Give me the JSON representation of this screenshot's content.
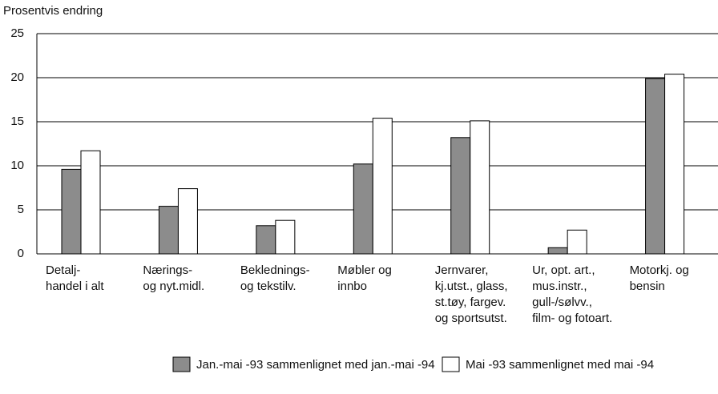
{
  "chart_data": {
    "type": "bar",
    "y_axis_label": "Prosentvis endring",
    "categories": [
      [
        "Detalj-",
        "handel i alt"
      ],
      [
        "Nærings-",
        "og nyt.midl."
      ],
      [
        "Beklednings-",
        "og tekstilv."
      ],
      [
        "Møbler og",
        "innbo"
      ],
      [
        "Jernvarer,",
        "kj.utst., glass,",
        "st.tøy, fargev.",
        "og sportsutst."
      ],
      [
        "Ur, opt. art.,",
        "mus.instr.,",
        "gull-/sølvv.,",
        "film- og fotoart."
      ],
      [
        "Motorkj. og",
        "bensin"
      ]
    ],
    "series": [
      {
        "name": "Jan.-mai -93 sammenlignet med jan.-mai -94",
        "color": "#8c8c8c",
        "values": [
          9.6,
          5.4,
          3.2,
          10.2,
          13.2,
          0.7,
          19.9
        ]
      },
      {
        "name": "Mai -93 sammenlignet med mai -94",
        "color": "#ffffff",
        "values": [
          11.7,
          7.4,
          3.8,
          15.4,
          15.1,
          2.7,
          20.4
        ]
      }
    ],
    "ylim": [
      0,
      25
    ],
    "yticks": [
      0,
      5,
      10,
      15,
      20,
      25
    ],
    "grid": true,
    "legend": "bottom"
  }
}
